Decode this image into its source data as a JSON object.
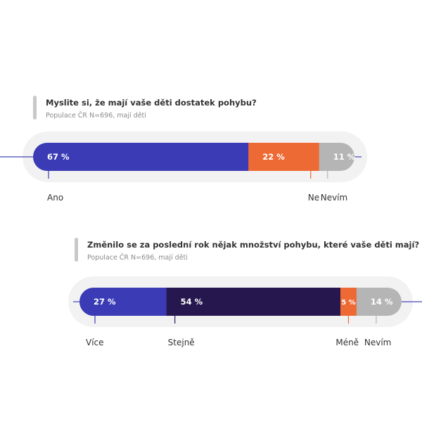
{
  "chart_data": [
    {
      "type": "bar",
      "orientation": "horizontal-stacked-100",
      "title": "Myslite si, že mají vaše děti dostatek pohybu?",
      "subtitle": "Populace ČR N=696, mají děti",
      "categories": [
        "Ano",
        "Ne",
        "Nevím"
      ],
      "values": [
        67,
        22,
        11
      ],
      "value_labels": [
        "67 %",
        "22 %",
        "11 %"
      ],
      "colors": [
        "#3a3bb5",
        "#ee6a35",
        "#b5b5b5"
      ]
    },
    {
      "type": "bar",
      "orientation": "horizontal-stacked-100",
      "title": "Změnilo se za poslední rok nějak množství pohybu, které vaše děti mají?",
      "subtitle": "Populace ČR N=696, mají děti",
      "categories": [
        "Více",
        "Stejně",
        "Méně",
        "Nevím"
      ],
      "values": [
        27,
        54,
        5,
        14
      ],
      "value_labels": [
        "27 %",
        "54 %",
        "5 %",
        "14 %"
      ],
      "colors": [
        "#3a3bb5",
        "#26184f",
        "#ee6a35",
        "#b5b5b5"
      ]
    }
  ],
  "colors": {
    "title_bar": "#c8c8c8",
    "track": "#f2f2f2",
    "axis_line": "#4446b8"
  }
}
